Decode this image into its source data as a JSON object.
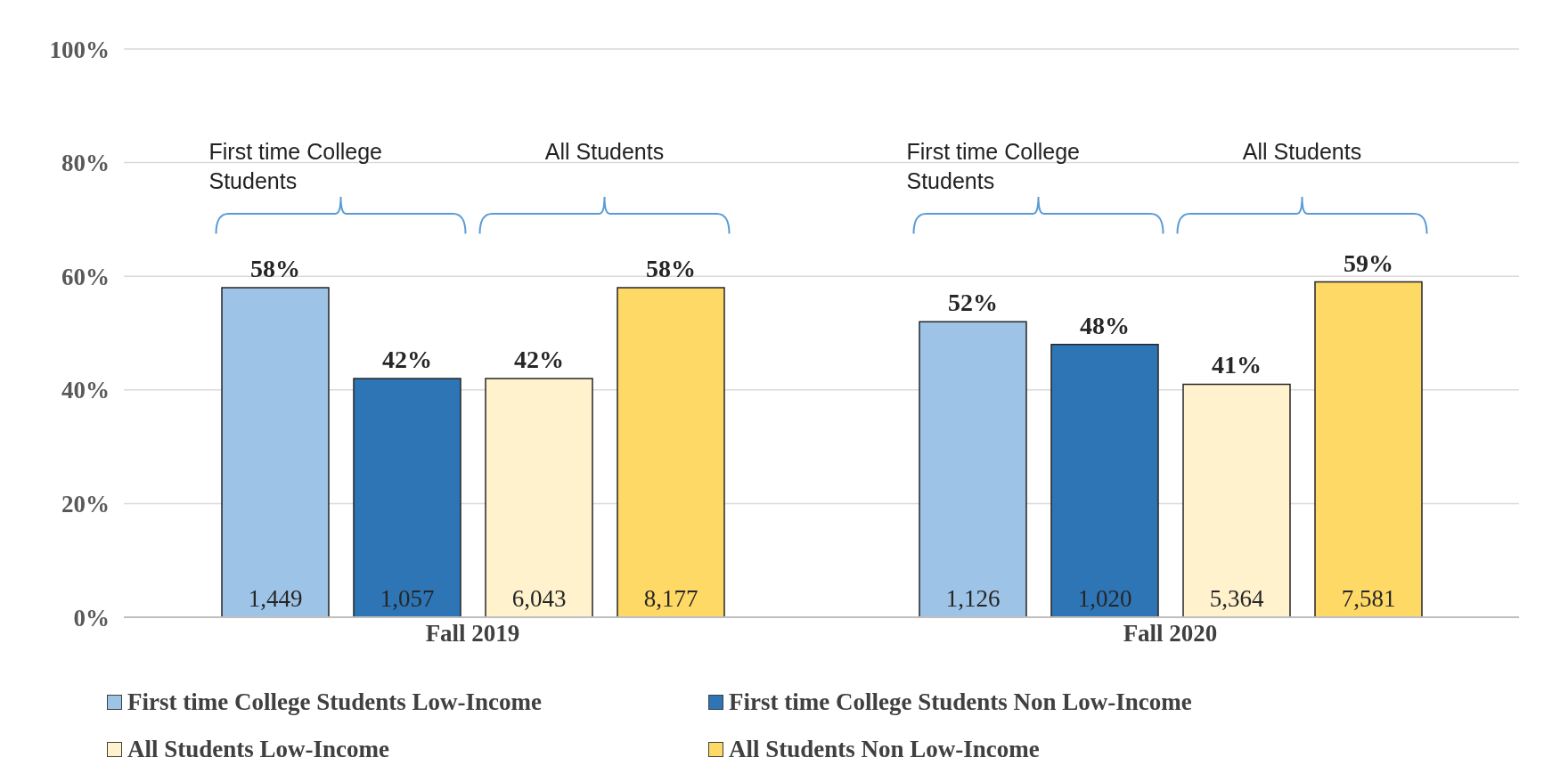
{
  "chart_data": {
    "type": "bar",
    "categories": [
      "Fall 2019",
      "Fall 2020"
    ],
    "series": [
      {
        "name": "First time College Students Low-Income",
        "color": "#9dc3e6",
        "values": [
          58,
          52
        ],
        "value_labels": [
          "58%",
          "52%"
        ]
      },
      {
        "name": "First time College Students Non Low-Income",
        "color": "#2e75b6",
        "values": [
          42,
          48
        ],
        "value_labels": [
          "42%",
          "48%"
        ]
      },
      {
        "name": "All Students  Low-Income",
        "color": "#fff2cc",
        "values": [
          42,
          41
        ],
        "value_labels": [
          "42%",
          "41%"
        ]
      },
      {
        "name": "All Students  Non Low-Income",
        "color": "#ffd966",
        "values": [
          58,
          59
        ],
        "value_labels": [
          "58%",
          "59%"
        ]
      }
    ],
    "ylim": [
      0,
      100
    ],
    "yticks": [
      {
        "value": 0,
        "label": "0%"
      },
      {
        "value": 20,
        "label": "20%"
      },
      {
        "value": 40,
        "label": "40%"
      },
      {
        "value": 60,
        "label": "60%"
      },
      {
        "value": 80,
        "label": "80%"
      },
      {
        "value": 100,
        "label": "100%"
      }
    ],
    "grid": "y",
    "legend": "bottom",
    "annotations": [
      "First time College Students",
      "All Students",
      "First time College Students",
      "All Students",
      "1,449",
      "1,057",
      "6,043",
      "8,177",
      "1,126",
      "1,020",
      "5,364",
      "7,581"
    ]
  }
}
